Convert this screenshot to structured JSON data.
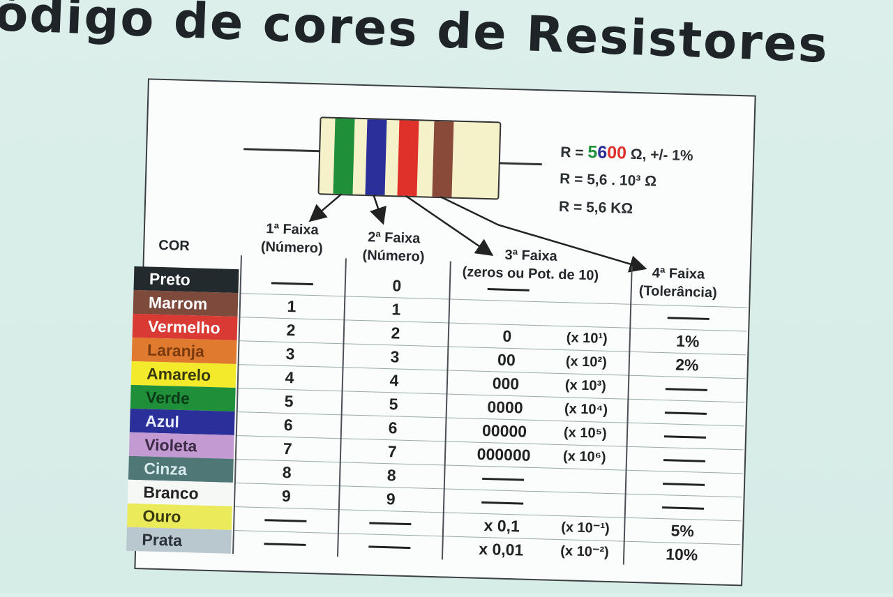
{
  "title": "ódigo de cores de Resistores",
  "formulas": {
    "line1_prefix": "R = ",
    "line1_digits": [
      "5",
      "6",
      "0",
      "0"
    ],
    "line1_suffix": " Ω,  +/- 1%",
    "line2": "R = 5,6 . 10³ Ω",
    "line3": "R = 5,6 KΩ"
  },
  "headers": {
    "cor": "COR",
    "faixa1": [
      "1ª Faixa",
      "(Número)"
    ],
    "faixa2": [
      "2ª Faixa",
      "(Número)"
    ],
    "faixa3": [
      "3ª Faixa",
      "(zeros ou Pot. de 10)"
    ],
    "faixa4": [
      "4ª Faixa",
      "(Tolerância)"
    ]
  },
  "colors": {
    "band1": "#1f8f3a",
    "band2": "#2b2f9a",
    "band3": "#e0302a",
    "band4": "#8a4a3a",
    "digit_5": "#1f8f3a",
    "digit_6": "#2b2f9a",
    "digit_0a": "#e0302a",
    "digit_0b": "#e0302a"
  },
  "rows": [
    {
      "name": "Preto",
      "bg": "#222a2e",
      "fg": "#ffffff",
      "f1": "—",
      "f2": "0",
      "zeros": "—",
      "pow": "",
      "tol": ""
    },
    {
      "name": "Marrom",
      "bg": "#7e4a3c",
      "fg": "#ffffff",
      "f1": "1",
      "f2": "1",
      "zeros": "",
      "pow": "",
      "tol": "—"
    },
    {
      "name": "Vermelho",
      "bg": "#d93a34",
      "fg": "#ffffff",
      "f1": "2",
      "f2": "2",
      "zeros": "0",
      "pow": "(x 10¹)",
      "tol": "1%"
    },
    {
      "name": "Laranja",
      "bg": "#e07a2e",
      "fg": "#7a3a10",
      "f1": "3",
      "f2": "3",
      "zeros": "00",
      "pow": "(x 10²)",
      "tol": "2%"
    },
    {
      "name": "Amarelo",
      "bg": "#f2ea2a",
      "fg": "#3a3a10",
      "f1": "4",
      "f2": "4",
      "zeros": "000",
      "pow": "(x 10³)",
      "tol": "—"
    },
    {
      "name": "Verde",
      "bg": "#1f8f3a",
      "fg": "#0c3a18",
      "f1": "5",
      "f2": "5",
      "zeros": "0000",
      "pow": "(x 10⁴)",
      "tol": "—"
    },
    {
      "name": "Azul",
      "bg": "#2b2f9a",
      "fg": "#e8ecff",
      "f1": "6",
      "f2": "6",
      "zeros": "00000",
      "pow": "(x 10⁵)",
      "tol": "—"
    },
    {
      "name": "Violeta",
      "bg": "#c49ad2",
      "fg": "#3a2a44",
      "f1": "7",
      "f2": "7",
      "zeros": "000000",
      "pow": "(x 10⁶)",
      "tol": "—"
    },
    {
      "name": "Cinza",
      "bg": "#4f7776",
      "fg": "#d8eceb",
      "f1": "8",
      "f2": "8",
      "zeros": "—",
      "pow": "",
      "tol": "—"
    },
    {
      "name": "Branco",
      "bg": "#f6f8f6",
      "fg": "#222222",
      "f1": "9",
      "f2": "9",
      "zeros": "—",
      "pow": "",
      "tol": "—"
    },
    {
      "name": "Ouro",
      "bg": "#eaea5a",
      "fg": "#3a3a10",
      "f1": "—",
      "f2": "—",
      "zeros": "x 0,1",
      "pow": "(x 10⁻¹)",
      "tol": "5%"
    },
    {
      "name": "Prata",
      "bg": "#b9c7cf",
      "fg": "#2a3238",
      "f1": "—",
      "f2": "—",
      "zeros": "x 0,01",
      "pow": "(x 10⁻²)",
      "tol": "10%"
    }
  ]
}
